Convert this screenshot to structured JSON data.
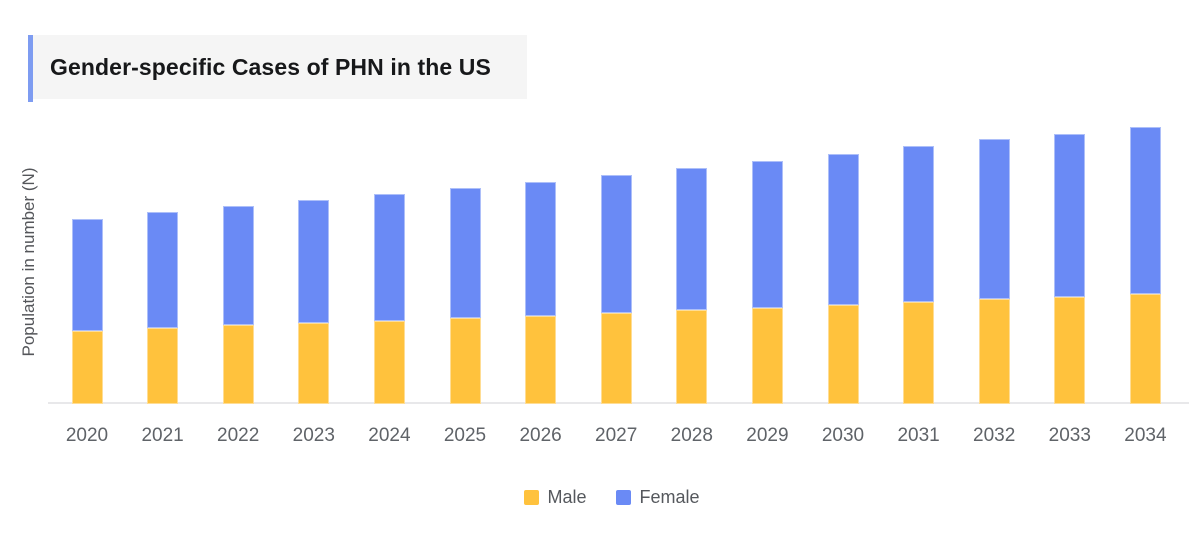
{
  "header": {
    "title": "Gender-specific Cases of PHN in the US"
  },
  "colors": {
    "male": "#FFC23D",
    "female": "#6A8AF5",
    "title_accent": "#7E9CF1",
    "title_bg": "#f5f5f5",
    "axis_line": "#e8e8ea",
    "axis_text": "#5f6368",
    "title_text": "#17181a"
  },
  "chart_data": {
    "type": "bar",
    "stacked": true,
    "title": "Gender-specific Cases of PHN in the US",
    "xlabel": "",
    "ylabel": "Population in number (N)",
    "categories": [
      "2020",
      "2021",
      "2022",
      "2023",
      "2024",
      "2025",
      "2026",
      "2027",
      "2028",
      "2029",
      "2030",
      "2031",
      "2032",
      "2033",
      "2034"
    ],
    "series": [
      {
        "name": "Male",
        "color": "#FFC23D",
        "values": [
          73,
          76,
          79,
          81,
          83,
          86,
          88,
          91,
          94,
          96,
          99,
          102,
          105,
          107,
          110
        ]
      },
      {
        "name": "Female",
        "color": "#6A8AF5",
        "values": [
          112,
          116,
          119,
          123,
          127,
          130,
          134,
          138,
          142,
          147,
          151,
          156,
          160,
          163,
          167
        ]
      }
    ],
    "value_units": "relative height (no numeric axis scale shown in chart)",
    "ylim": [
      0,
      300
    ],
    "grid": false,
    "y_ticks_visible": false,
    "legend_position": "bottom"
  }
}
